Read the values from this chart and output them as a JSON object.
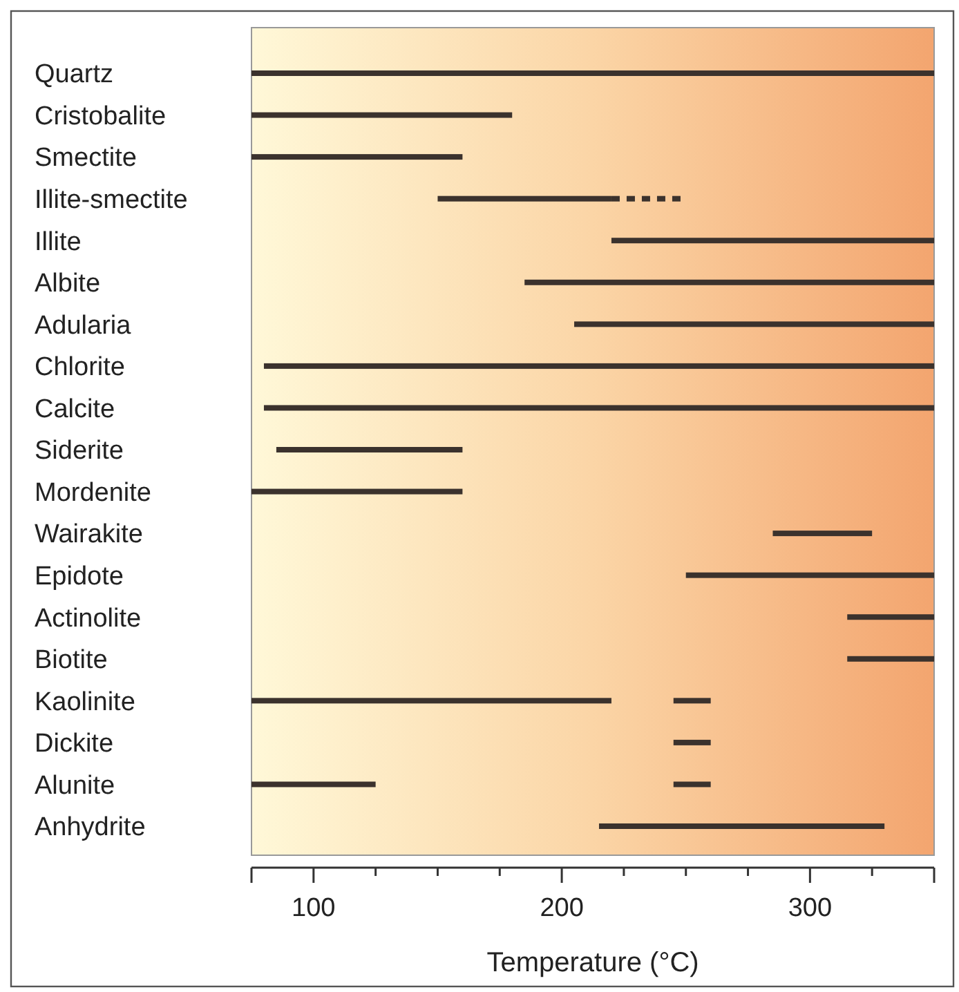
{
  "chart_data": {
    "type": "bar",
    "orientation": "horizontal",
    "xlabel": "Temperature (°C)",
    "categories": [
      "Quartz",
      "Cristobalite",
      "Smectite",
      "Illite-smectite",
      "Illite",
      "Albite",
      "Adularia",
      "Chlorite",
      "Calcite",
      "Siderite",
      "Mordenite",
      "Wairakite",
      "Epidote",
      "Actinolite",
      "Biotite",
      "Kaolinite",
      "Dickite",
      "Alunite",
      "Anhydrite"
    ],
    "series": [
      {
        "color": "#3b322d",
        "line_style": "solid",
        "base": [
          75,
          75,
          75,
          150,
          220,
          185,
          205,
          80,
          80,
          85,
          75,
          285,
          250,
          315,
          315,
          75,
          245,
          75,
          215
        ],
        "values": [
          275,
          105,
          85,
          70,
          130,
          165,
          145,
          270,
          270,
          75,
          85,
          40,
          100,
          35,
          35,
          145,
          15,
          50,
          115
        ]
      },
      {
        "color": "#3b322d",
        "line_style": "solid",
        "base": [
          null,
          null,
          null,
          null,
          null,
          null,
          null,
          null,
          null,
          null,
          null,
          null,
          null,
          null,
          null,
          245,
          null,
          245,
          null
        ],
        "values": [
          null,
          null,
          null,
          null,
          null,
          null,
          null,
          null,
          null,
          null,
          null,
          null,
          null,
          null,
          null,
          15,
          null,
          15,
          null
        ]
      },
      {
        "color": "#3b322d",
        "line_style": "dashed",
        "base": [
          null,
          null,
          null,
          220,
          null,
          null,
          null,
          null,
          null,
          null,
          null,
          null,
          null,
          null,
          null,
          null,
          null,
          null,
          null
        ],
        "values": [
          null,
          null,
          null,
          28,
          null,
          null,
          null,
          null,
          null,
          null,
          null,
          null,
          null,
          null,
          null,
          null,
          null,
          null,
          null
        ]
      }
    ],
    "xlim": [
      75,
      350
    ],
    "xticks": [
      {
        "value": 75,
        "label": null
      },
      100,
      {
        "value": 125,
        "label": null
      },
      {
        "value": 150,
        "label": null
      },
      {
        "value": 175,
        "label": null
      },
      200,
      {
        "value": 225,
        "label": null
      },
      {
        "value": 250,
        "label": null
      },
      {
        "value": 275,
        "label": null
      },
      300,
      {
        "value": 325,
        "label": null
      },
      {
        "value": 350,
        "label": null
      }
    ],
    "grid": false
  }
}
